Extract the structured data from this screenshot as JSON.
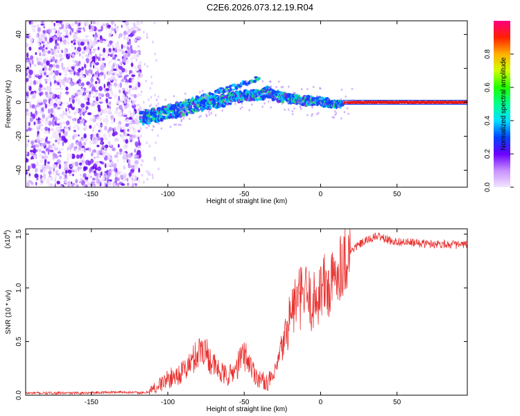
{
  "title": "C2E6.2026.073.12.19.R04",
  "chart_data": [
    {
      "type": "heatmap",
      "name": "spectrogram",
      "xlabel": "Height of straight line (km)",
      "ylabel": "Frequency (Hz)",
      "xlim": [
        -193,
        96
      ],
      "ylim": [
        -50,
        48
      ],
      "xticks": [
        -150,
        -100,
        -50,
        0,
        50
      ],
      "yticks": [
        -40,
        -20,
        0,
        20,
        40
      ],
      "noise_region_x": [
        -193,
        -118
      ],
      "signal_track": {
        "x": [
          -118,
          -110,
          -100,
          -90,
          -80,
          -70,
          -60,
          -50,
          -40,
          -35,
          -30,
          -20,
          -10,
          0,
          10,
          20,
          30,
          40,
          50,
          60,
          70,
          80,
          90,
          96
        ],
        "freq": [
          -9,
          -8,
          -6,
          -4,
          -2,
          0,
          2,
          4,
          4,
          6,
          4,
          2,
          1,
          0,
          -1,
          0,
          0,
          0,
          0,
          0,
          0,
          0,
          0,
          0
        ]
      },
      "upper_branch": {
        "x": [
          -100,
          -90,
          -80,
          -70,
          -60,
          -50,
          -45,
          -40
        ],
        "freq": [
          -3,
          -1,
          2,
          5,
          8,
          11,
          13,
          15
        ]
      },
      "colorbar": {
        "label": "Normalized spectral amplitude",
        "range": [
          0.0,
          1.0
        ],
        "ticks": [
          0.0,
          0.2,
          0.4,
          0.6,
          0.8
        ],
        "tick_labels": [
          "0.0",
          "0.2",
          "0.4",
          "0.6",
          "0.8"
        ]
      }
    },
    {
      "type": "line",
      "name": "snr",
      "xlabel": "Height of straight line (km)",
      "ylabel": "SNR (10 * v/v)",
      "exponent_label": "(x10",
      "exponent_sup": "4",
      "exponent_close": ")",
      "xlim": [
        -193,
        96
      ],
      "ylim": [
        0,
        1.55
      ],
      "xticks": [
        -150,
        -100,
        -50,
        0,
        50
      ],
      "yticks": [
        0.0,
        0.5,
        1.0,
        1.5
      ],
      "ytick_labels": [
        "0.0",
        "0.5",
        "1.0",
        "1.5"
      ],
      "color": "#e8302e",
      "series": {
        "x": [
          -193,
          -160,
          -130,
          -115,
          -110,
          -105,
          -100,
          -95,
          -90,
          -85,
          -80,
          -77,
          -74,
          -70,
          -65,
          -60,
          -55,
          -52,
          -50,
          -47,
          -44,
          -40,
          -35,
          -30,
          -28,
          -25,
          -22,
          -20,
          -18,
          -15,
          -12,
          -10,
          -8,
          -5,
          -2,
          0,
          3,
          6,
          8,
          10,
          12,
          15,
          20,
          25,
          30,
          35,
          38,
          40,
          45,
          50,
          60,
          70,
          80,
          90,
          96
        ],
        "y": [
          0.02,
          0.02,
          0.03,
          0.02,
          0.05,
          0.1,
          0.15,
          0.18,
          0.22,
          0.3,
          0.4,
          0.45,
          0.38,
          0.28,
          0.2,
          0.18,
          0.25,
          0.35,
          0.38,
          0.32,
          0.22,
          0.15,
          0.12,
          0.18,
          0.3,
          0.45,
          0.6,
          0.75,
          0.82,
          0.88,
          0.92,
          0.95,
          0.9,
          0.85,
          0.92,
          1.0,
          1.02,
          0.98,
          1.05,
          1.12,
          1.2,
          1.25,
          1.35,
          1.4,
          1.44,
          1.47,
          1.48,
          1.47,
          1.44,
          1.43,
          1.42,
          1.41,
          1.41,
          1.4,
          1.4
        ]
      }
    }
  ]
}
